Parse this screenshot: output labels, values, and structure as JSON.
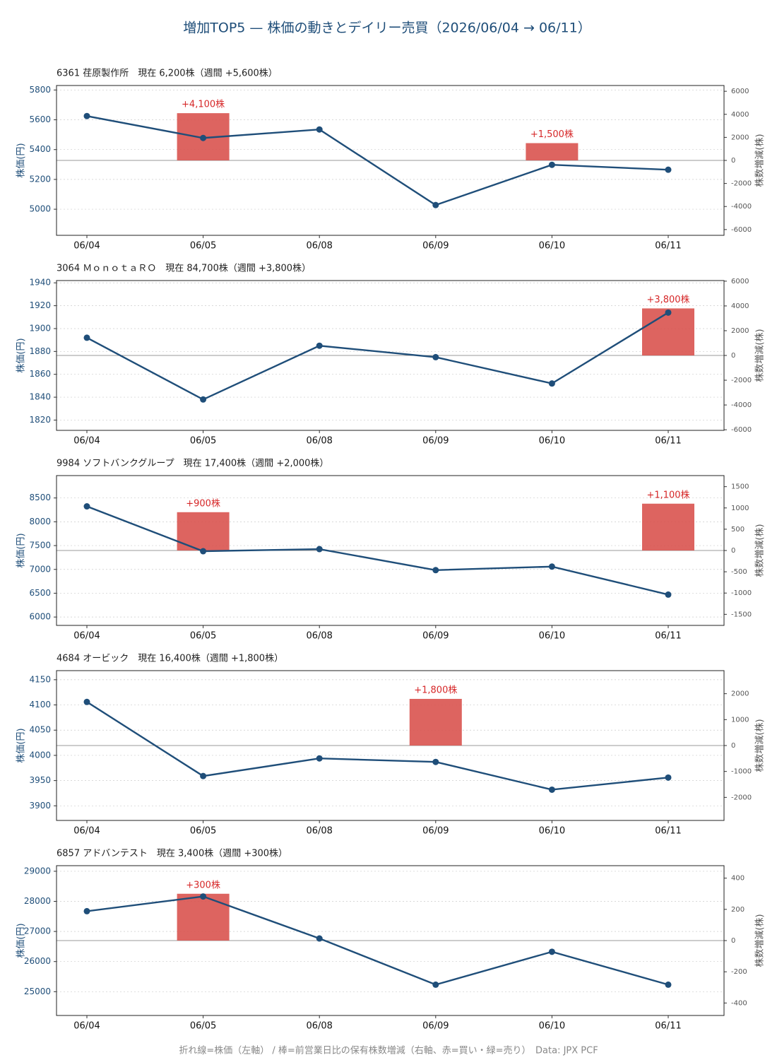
{
  "title": "増加TOP5 — 株価の動きとデイリー売買（2026/06/04 → 06/11）",
  "footer": "折れ線=株価（左軸） / 棒=前営業日比の保有株数増減（右軸、赤=買い・緑=売り）　Data: JPX PCF",
  "chart_data": [
    {
      "type": "combo",
      "title": "6361 荏原製作所　現在 6,200株（週間 +5,600株）",
      "categories": [
        "06/04",
        "06/05",
        "06/08",
        "06/09",
        "06/10",
        "06/11"
      ],
      "ylabel": "株価(円)",
      "y2label": "株数増減(株)",
      "ylim": [
        4825,
        5830
      ],
      "yticks": [
        5000,
        5200,
        5400,
        5600,
        5800
      ],
      "y2lim": [
        -6500,
        6500
      ],
      "y2ticks": [
        -6000,
        -4000,
        -2000,
        0,
        2000,
        4000,
        6000
      ],
      "grid": true,
      "series": [
        {
          "type": "bar",
          "axis": "y2",
          "color": "#d9534f",
          "values": [
            null,
            4100,
            null,
            null,
            1500,
            null
          ],
          "value_labels": [
            null,
            "+4,100株",
            null,
            null,
            "+1,500株",
            null
          ]
        },
        {
          "type": "line",
          "color": "#1f4e79",
          "values": [
            5625,
            5478,
            5535,
            5028,
            5298,
            5265
          ]
        }
      ]
    },
    {
      "type": "combo",
      "title": "3064 ＭｏｎｏｔａＲＯ　現在 84,700株（週間 +3,800株）",
      "categories": [
        "06/04",
        "06/05",
        "06/08",
        "06/09",
        "06/10",
        "06/11"
      ],
      "ylabel": "株価(円)",
      "y2label": "株数増減(株)",
      "ylim": [
        1811,
        1942
      ],
      "yticks": [
        1820,
        1840,
        1860,
        1880,
        1900,
        1920,
        1940
      ],
      "y2lim": [
        -6050,
        6050
      ],
      "y2ticks": [
        -6000,
        -4000,
        -2000,
        0,
        2000,
        4000,
        6000
      ],
      "grid": true,
      "series": [
        {
          "type": "bar",
          "axis": "y2",
          "color": "#d9534f",
          "values": [
            null,
            null,
            null,
            null,
            null,
            3800
          ],
          "value_labels": [
            null,
            null,
            null,
            null,
            null,
            "+3,800株"
          ]
        },
        {
          "type": "line",
          "color": "#1f4e79",
          "values": [
            1892,
            1838,
            1885,
            1875,
            1852,
            1914
          ]
        }
      ]
    },
    {
      "type": "combo",
      "title": "9984 ソフトバンクグループ　現在 17,400株（週間 +2,000株）",
      "categories": [
        "06/04",
        "06/05",
        "06/08",
        "06/09",
        "06/10",
        "06/11"
      ],
      "ylabel": "株価(円)",
      "y2label": "株数増減(株)",
      "ylim": [
        5824,
        8970
      ],
      "yticks": [
        6000,
        6500,
        7000,
        7500,
        8000,
        8500
      ],
      "y2lim": [
        -1760,
        1760
      ],
      "y2ticks": [
        -1500,
        -1000,
        -500,
        0,
        500,
        1000,
        1500
      ],
      "grid": true,
      "series": [
        {
          "type": "bar",
          "axis": "y2",
          "color": "#d9534f",
          "values": [
            null,
            900,
            null,
            null,
            null,
            1100
          ],
          "value_labels": [
            null,
            "+900株",
            null,
            null,
            null,
            "+1,100株"
          ]
        },
        {
          "type": "line",
          "color": "#1f4e79",
          "values": [
            8324,
            7382,
            7426,
            6985,
            7059,
            6471
          ]
        }
      ]
    },
    {
      "type": "combo",
      "title": "4684 オービック　現在 16,400株（週間 +1,800株）",
      "categories": [
        "06/04",
        "06/05",
        "06/08",
        "06/09",
        "06/10",
        "06/11"
      ],
      "ylabel": "株価(円)",
      "y2label": "株数増減(株)",
      "ylim": [
        3871,
        4168
      ],
      "yticks": [
        3900,
        3950,
        4000,
        4050,
        4100,
        4150
      ],
      "y2lim": [
        -2890,
        2890
      ],
      "y2ticks": [
        -2000,
        -1000,
        0,
        1000,
        2000
      ],
      "grid": true,
      "series": [
        {
          "type": "bar",
          "axis": "y2",
          "color": "#d9534f",
          "values": [
            null,
            null,
            null,
            1800,
            null,
            null
          ],
          "value_labels": [
            null,
            null,
            null,
            "+1,800株",
            null,
            null
          ]
        },
        {
          "type": "line",
          "color": "#1f4e79",
          "values": [
            4106,
            3959,
            3994,
            3987,
            3932,
            3956
          ]
        }
      ]
    },
    {
      "type": "combo",
      "title": "6857 アドバンテスト　現在 3,400株（週間 +300株）",
      "categories": [
        "06/04",
        "06/05",
        "06/08",
        "06/09",
        "06/10",
        "06/11"
      ],
      "ylabel": "株価(円)",
      "y2label": "株数増減(株)",
      "ylim": [
        24209,
        29186
      ],
      "yticks": [
        25000,
        26000,
        27000,
        28000,
        29000
      ],
      "y2lim": [
        -480,
        480
      ],
      "y2ticks": [
        -400,
        -200,
        0,
        200,
        400
      ],
      "grid": true,
      "series": [
        {
          "type": "bar",
          "axis": "y2",
          "color": "#d9534f",
          "values": [
            null,
            300,
            null,
            null,
            null,
            null
          ],
          "value_labels": [
            null,
            "+300株",
            null,
            null,
            null,
            null
          ]
        },
        {
          "type": "line",
          "color": "#1f4e79",
          "values": [
            27674,
            28163,
            26767,
            25233,
            26326,
            25233
          ]
        }
      ]
    }
  ]
}
